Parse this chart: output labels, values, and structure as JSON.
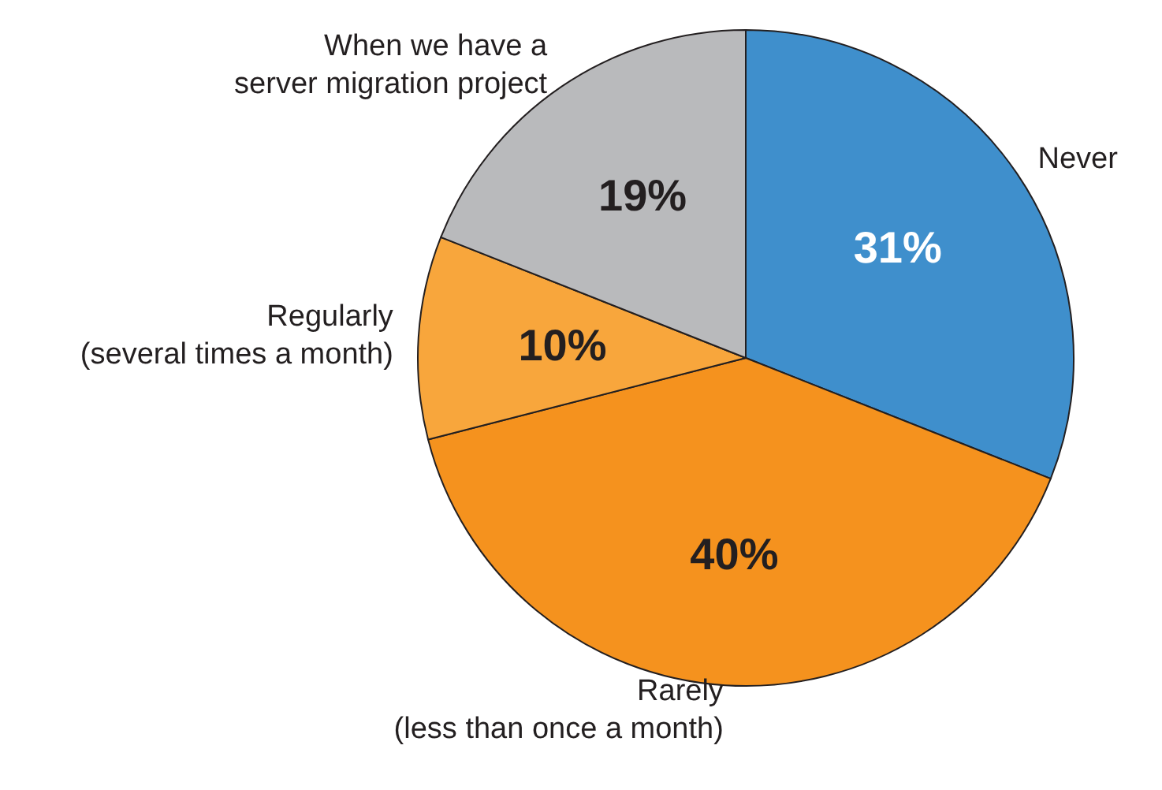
{
  "chart_data": {
    "type": "pie",
    "categories": [
      "Never",
      "Rarely\n(less than once a month)",
      "Regularly\n(several times a month)",
      "When we have a\nserver migration project"
    ],
    "values": [
      31,
      40,
      10,
      19
    ],
    "colors": [
      "#3f8fcc",
      "#f5921e",
      "#f8a63c",
      "#b9babc"
    ],
    "value_labels": [
      "31%",
      "40%",
      "10%",
      "19%"
    ],
    "legend": false
  }
}
